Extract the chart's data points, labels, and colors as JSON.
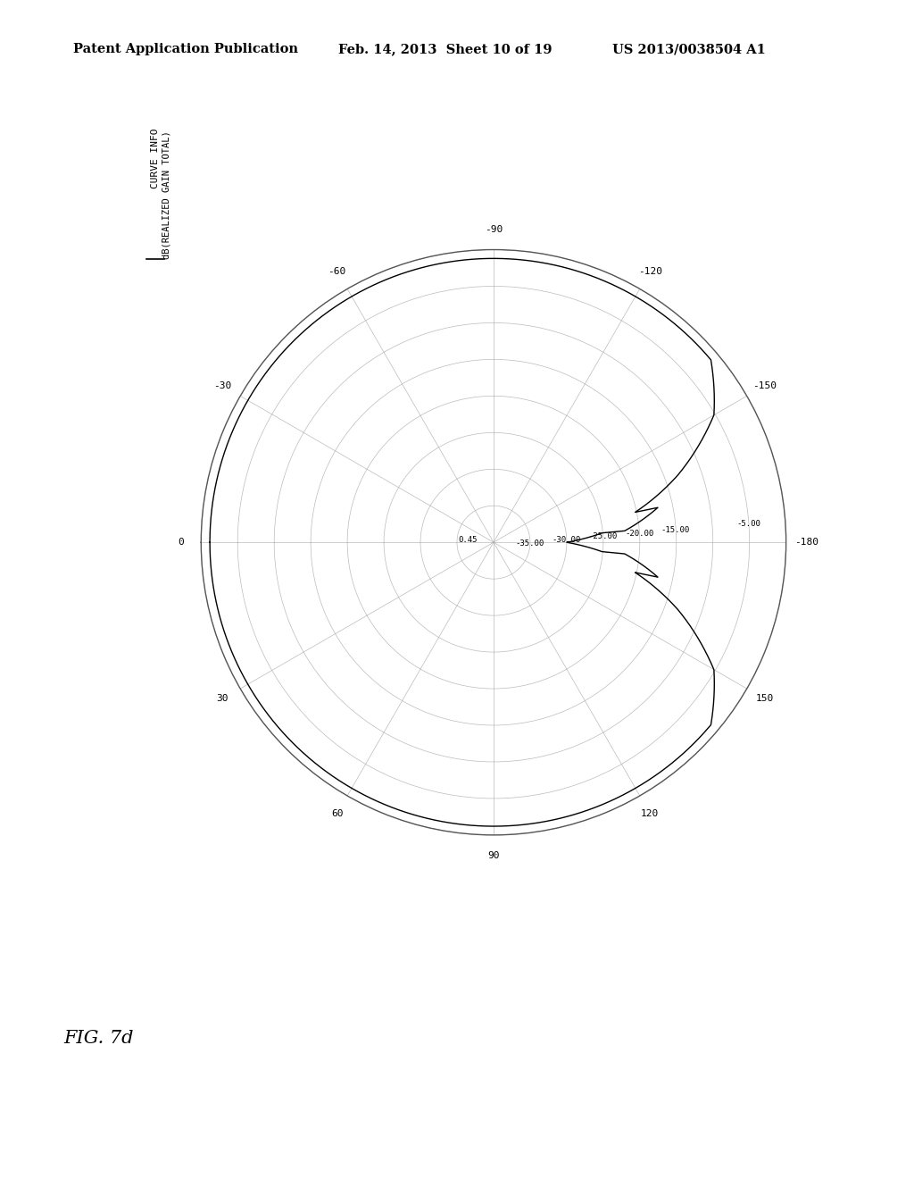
{
  "header_left": "Patent Application Publication",
  "header_center": "Feb. 14, 2013  Sheet 10 of 19",
  "header_right": "US 2013/0038504 A1",
  "figure_label": "FIG. 7d",
  "curve_info_label": "CURVE INFO",
  "curve_legend": "dB(REALIZED GAIN TOTAL)",
  "background_color": "#ffffff",
  "plot_color": "#000000",
  "grid_color": "#aaaaaa",
  "r_max": 40.0,
  "radial_ring_values": [
    5,
    10,
    15,
    20,
    25,
    30,
    35,
    40
  ],
  "radial_ring_labels": {
    "5": "-35.00",
    "10": "-30.00",
    "15": "-25.00",
    "20": "-20.00",
    "25": "-15.00",
    "30": "",
    "35": "-5.00",
    "40": "0.45"
  },
  "angle_ticks_deg": [
    0,
    30,
    60,
    90,
    120,
    150,
    180,
    210,
    240,
    270,
    300,
    330
  ],
  "angle_tick_labels": [
    "0",
    "30",
    "60",
    "90",
    "120",
    "150",
    "-180",
    "-150",
    "-120",
    "-90",
    "-60",
    "-30"
  ]
}
